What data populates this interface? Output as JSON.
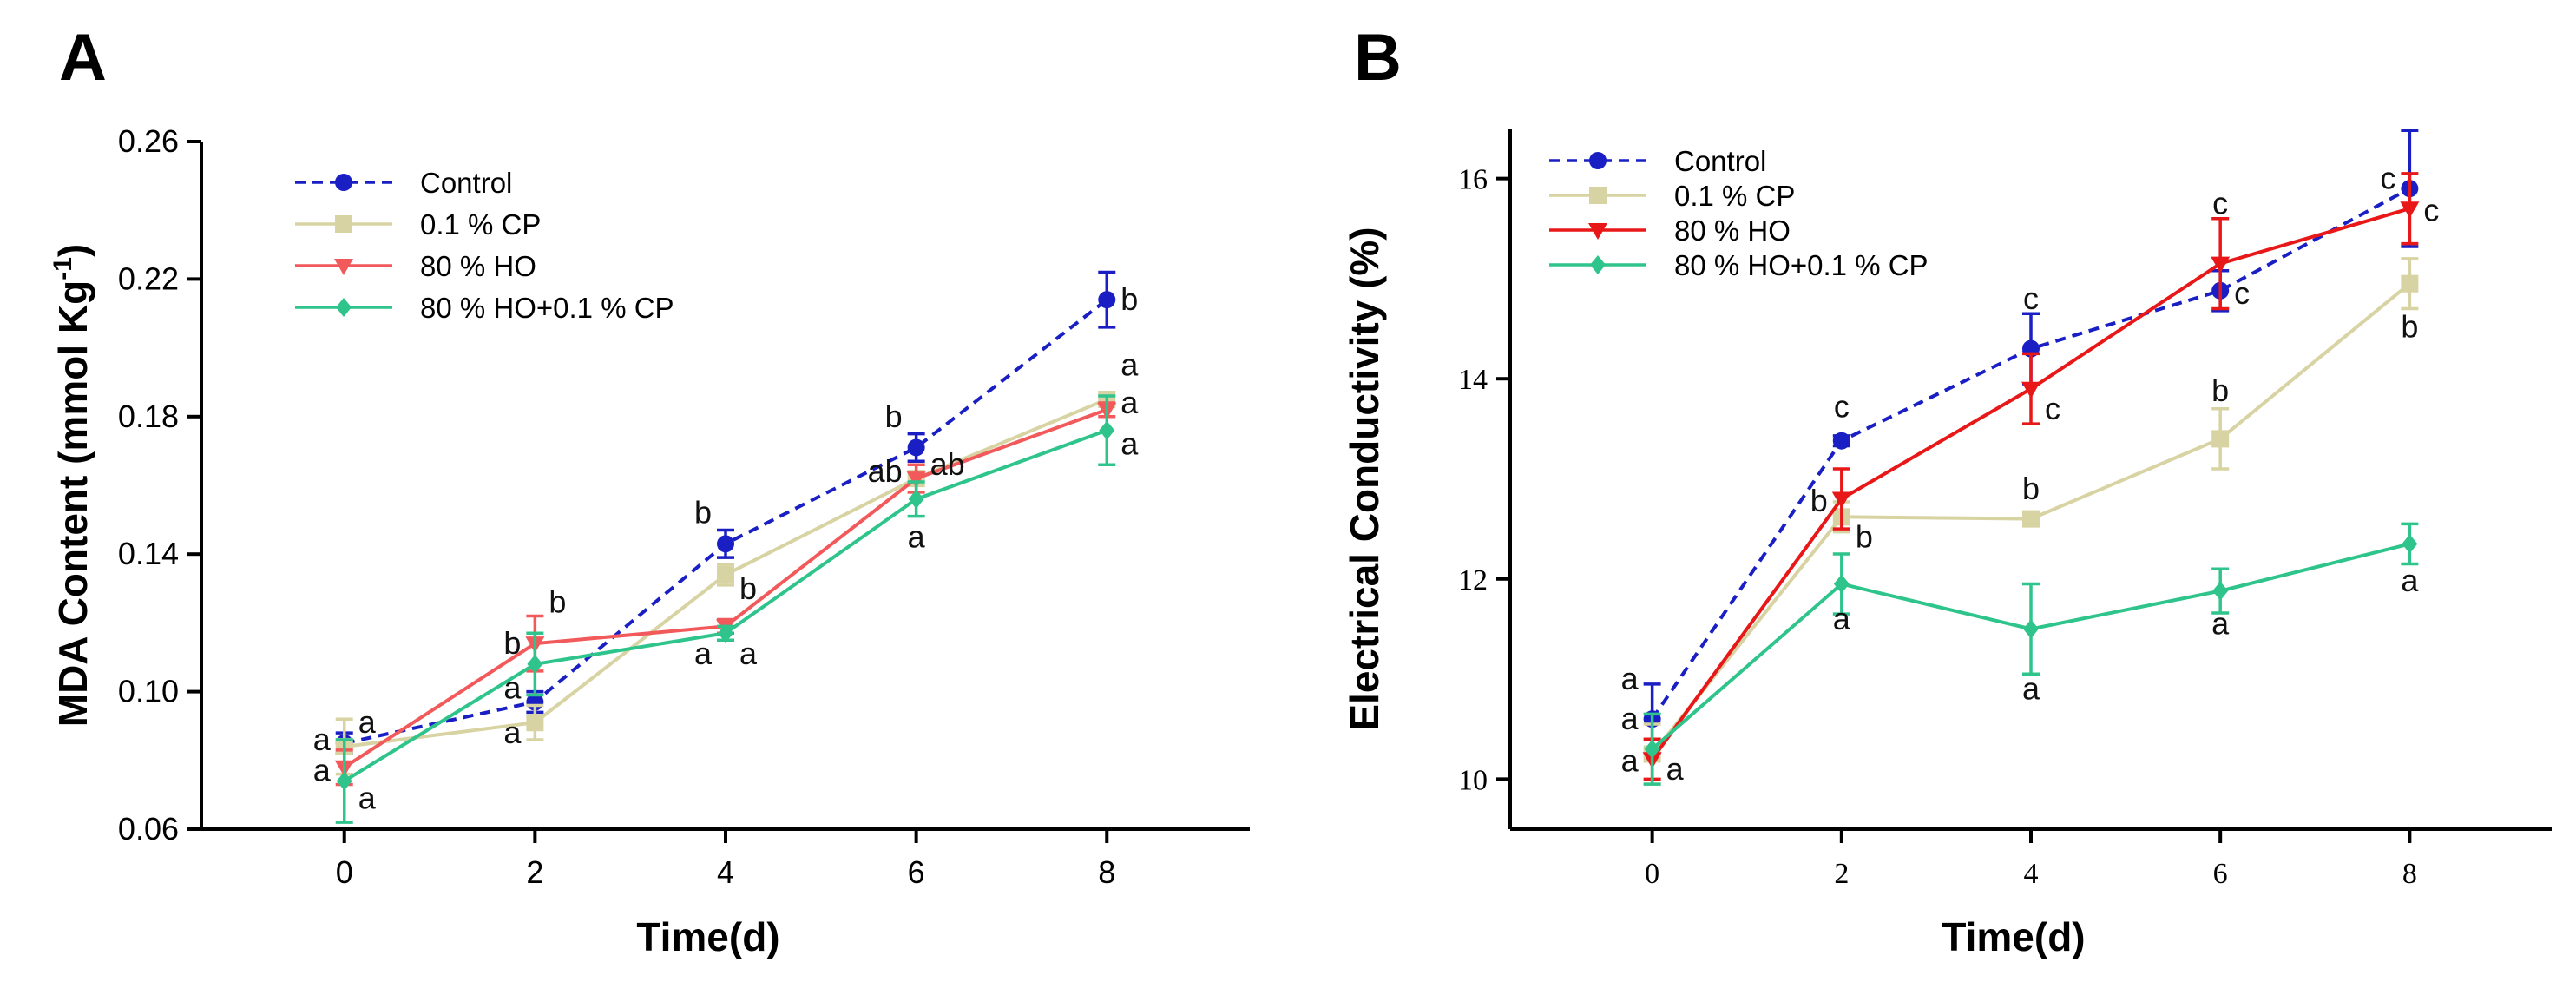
{
  "chart_data": [
    {
      "type": "line",
      "panel": "A",
      "title": "",
      "xlabel": "Time(d)",
      "ylabel_main": "MDA Content (mmol Kg",
      "ylabel_sup": "-1",
      "ylabel_end": ")",
      "xlim": [
        -1.5,
        9.5
      ],
      "ylim": [
        0.06,
        0.26
      ],
      "x_ticks": [
        0,
        2,
        4,
        6,
        8
      ],
      "x_tick_labels": [
        "0",
        "2",
        "4",
        "6",
        "8"
      ],
      "y_ticks": [
        0.06,
        0.1,
        0.14,
        0.18,
        0.22,
        0.26
      ],
      "y_tick_labels": [
        "0.06",
        "0.10",
        "0.14",
        "0.18",
        "0.22",
        "0.26"
      ],
      "legend_position": "top-left",
      "x": [
        0,
        2,
        4,
        6,
        8
      ],
      "series": [
        {
          "name": "Control",
          "color": "#1a1fc4",
          "dashed": true,
          "marker": "circle",
          "values": [
            0.085,
            0.097,
            0.143,
            0.171,
            0.214
          ],
          "errors": [
            0.003,
            0.003,
            0.004,
            0.004,
            0.008
          ]
        },
        {
          "name": "0.1 % CP",
          "color": "#d8d3a2",
          "dashed": false,
          "marker": "square",
          "values": [
            0.084,
            0.091,
            0.134,
            0.162,
            0.185
          ],
          "errors": [
            0.008,
            0.005,
            0.003,
            0.004,
            0.002
          ]
        },
        {
          "name": "80 % HO",
          "color": "#f2595b",
          "dashed": false,
          "marker": "triangle-down",
          "values": [
            0.078,
            0.114,
            0.119,
            0.162,
            0.182
          ],
          "errors": [
            0.005,
            0.008,
            0.002,
            0.004,
            0.002
          ]
        },
        {
          "name": "80 % HO+0.1 % CP",
          "color": "#2ec48b",
          "dashed": false,
          "marker": "diamond",
          "values": [
            0.074,
            0.108,
            0.117,
            0.156,
            0.176
          ],
          "errors": [
            0.012,
            0.009,
            0.002,
            0.005,
            0.01
          ]
        }
      ],
      "annotations": [
        {
          "text": "a",
          "x": 0,
          "y": 0.091,
          "side": "right"
        },
        {
          "text": "a",
          "x": 0,
          "y": 0.086,
          "side": "left"
        },
        {
          "text": "a",
          "x": 0,
          "y": 0.077,
          "side": "left"
        },
        {
          "text": "a",
          "x": 0,
          "y": 0.069,
          "side": "right"
        },
        {
          "text": "b",
          "x": 2,
          "y": 0.126,
          "side": "right"
        },
        {
          "text": "b",
          "x": 2,
          "y": 0.114,
          "side": "left"
        },
        {
          "text": "a",
          "x": 2,
          "y": 0.101,
          "side": "left"
        },
        {
          "text": "a",
          "x": 2,
          "y": 0.088,
          "side": "left"
        },
        {
          "text": "b",
          "x": 4,
          "y": 0.152,
          "side": "left"
        },
        {
          "text": "b",
          "x": 4,
          "y": 0.13,
          "side": "right"
        },
        {
          "text": "a",
          "x": 4,
          "y": 0.111,
          "side": "left"
        },
        {
          "text": "a",
          "x": 4,
          "y": 0.111,
          "side": "right"
        },
        {
          "text": "b",
          "x": 6,
          "y": 0.18,
          "side": "left"
        },
        {
          "text": "ab",
          "x": 6,
          "y": 0.164,
          "side": "left"
        },
        {
          "text": "ab",
          "x": 6,
          "y": 0.166,
          "side": "right"
        },
        {
          "text": "a",
          "x": 6,
          "y": 0.145,
          "side": "center"
        },
        {
          "text": "b",
          "x": 8,
          "y": 0.214,
          "side": "right"
        },
        {
          "text": "a",
          "x": 8,
          "y": 0.195,
          "side": "right"
        },
        {
          "text": "a",
          "x": 8,
          "y": 0.184,
          "side": "right"
        },
        {
          "text": "a",
          "x": 8,
          "y": 0.172,
          "side": "right"
        }
      ]
    },
    {
      "type": "line",
      "panel": "B",
      "title": "",
      "xlabel": "Time(d)",
      "ylabel_main": "Electrical Conductivity (%)",
      "ylabel_sup": "",
      "ylabel_end": "",
      "xlim": [
        -1.5,
        9.5
      ],
      "ylim": [
        9.5,
        16.5
      ],
      "x_ticks": [
        0,
        2,
        4,
        6,
        8
      ],
      "x_tick_labels": [
        "0",
        "2",
        "4",
        "6",
        "8"
      ],
      "y_ticks": [
        10,
        12,
        14,
        16
      ],
      "y_tick_labels": [
        "10",
        "12",
        "14",
        "16"
      ],
      "legend_position": "top-left",
      "x": [
        0,
        2,
        4,
        6,
        8
      ],
      "series": [
        {
          "name": "Control",
          "color": "#1a1fc4",
          "dashed": true,
          "marker": "circle",
          "values": [
            10.6,
            13.38,
            14.3,
            14.88,
            15.9
          ],
          "errors": [
            0.35,
            0.05,
            0.35,
            0.2,
            0.58
          ]
        },
        {
          "name": "0.1 % CP",
          "color": "#d8d3a2",
          "dashed": false,
          "marker": "square",
          "values": [
            10.25,
            12.62,
            12.6,
            13.4,
            14.95
          ],
          "errors": [
            0.3,
            0.15,
            0.05,
            0.3,
            0.25
          ]
        },
        {
          "name": "80 % HO",
          "color": "#e81818",
          "dashed": false,
          "marker": "triangle-down",
          "values": [
            10.2,
            12.8,
            13.9,
            15.15,
            15.7
          ],
          "errors": [
            0.2,
            0.3,
            0.35,
            0.45,
            0.35
          ]
        },
        {
          "name": "80 % HO+0.1 % CP",
          "color": "#2ec48b",
          "dashed": false,
          "marker": "diamond",
          "values": [
            10.3,
            11.95,
            11.5,
            11.88,
            12.35
          ],
          "errors": [
            0.35,
            0.3,
            0.45,
            0.22,
            0.2
          ]
        }
      ],
      "annotations": [
        {
          "text": "a",
          "x": 0,
          "y": 11.0,
          "side": "left"
        },
        {
          "text": "a",
          "x": 0,
          "y": 10.6,
          "side": "left"
        },
        {
          "text": "a",
          "x": 0,
          "y": 10.18,
          "side": "left"
        },
        {
          "text": "a",
          "x": 0,
          "y": 10.1,
          "side": "right"
        },
        {
          "text": "c",
          "x": 2,
          "y": 13.72,
          "side": "center"
        },
        {
          "text": "b",
          "x": 2,
          "y": 12.78,
          "side": "left"
        },
        {
          "text": "b",
          "x": 2,
          "y": 12.42,
          "side": "right"
        },
        {
          "text": "a",
          "x": 2,
          "y": 11.6,
          "side": "center"
        },
        {
          "text": "c",
          "x": 4,
          "y": 14.8,
          "side": "center"
        },
        {
          "text": "c",
          "x": 4,
          "y": 13.7,
          "side": "right"
        },
        {
          "text": "b",
          "x": 4,
          "y": 12.9,
          "side": "center"
        },
        {
          "text": "a",
          "x": 4,
          "y": 10.9,
          "side": "center"
        },
        {
          "text": "c",
          "x": 6,
          "y": 15.75,
          "side": "center"
        },
        {
          "text": "c",
          "x": 6,
          "y": 14.85,
          "side": "right"
        },
        {
          "text": "b",
          "x": 6,
          "y": 13.88,
          "side": "center"
        },
        {
          "text": "a",
          "x": 6,
          "y": 11.55,
          "side": "center"
        },
        {
          "text": "c",
          "x": 8,
          "y": 16.0,
          "side": "left"
        },
        {
          "text": "c",
          "x": 8,
          "y": 15.68,
          "side": "right"
        },
        {
          "text": "b",
          "x": 8,
          "y": 14.52,
          "side": "center"
        },
        {
          "text": "a",
          "x": 8,
          "y": 11.98,
          "side": "center"
        }
      ]
    }
  ]
}
